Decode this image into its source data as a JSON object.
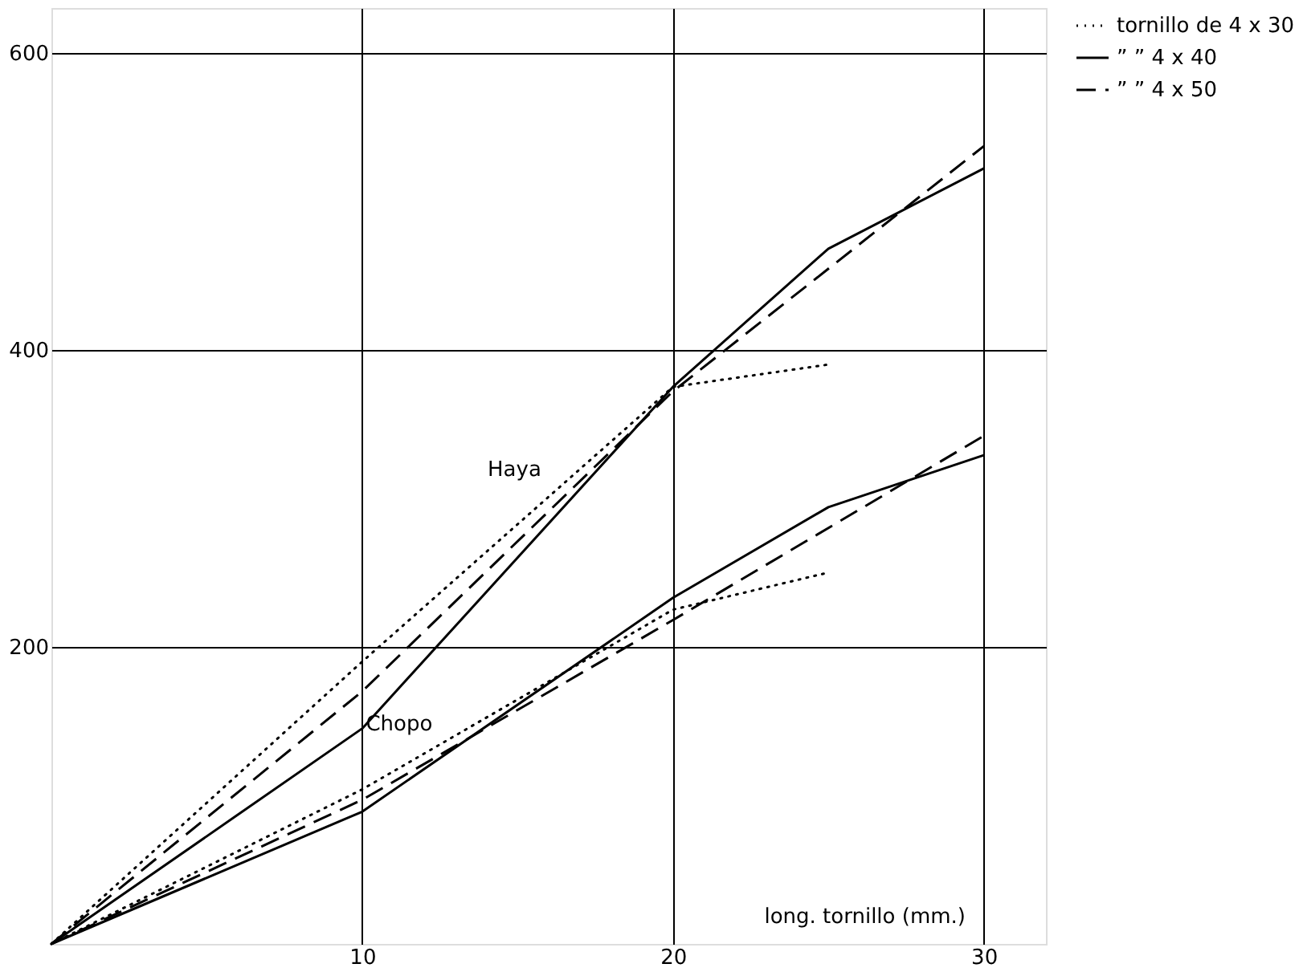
{
  "chart_data": {
    "type": "line",
    "xlabel": "long. tornillo (mm.)",
    "xlim": [
      0,
      32
    ],
    "ylim": [
      0,
      630
    ],
    "xticks": [
      10,
      20,
      30
    ],
    "yticks": [
      200,
      400,
      600
    ],
    "grid": true,
    "legend": "right",
    "marker": "none",
    "annotations": [
      {
        "text": "Haya",
        "x": 16.9,
        "y": 304
      },
      {
        "text": "Chopo",
        "x": 13.4,
        "y": 133
      }
    ],
    "series": [
      {
        "name": "tornillo de 4 x 30",
        "color": "#000000",
        "line_style": "dotted",
        "x": [
          0,
          10,
          20,
          25
        ],
        "values": [
          0,
          190,
          375,
          390
        ]
      },
      {
        "name": "”   ” 4 x 40",
        "color": "#000000",
        "line_style": "solid",
        "x": [
          0,
          10,
          20,
          25,
          30
        ],
        "values": [
          0,
          145,
          375,
          468,
          522
        ]
      },
      {
        "name": "”   ” 4 x 50",
        "color": "#000000",
        "line_style": "dashed",
        "x": [
          0,
          10,
          20,
          30
        ],
        "values": [
          0,
          170,
          372,
          537
        ]
      },
      {
        "color": "#000000",
        "line_style": "dotted",
        "x": [
          0,
          10,
          20,
          25
        ],
        "values": [
          0,
          104,
          225,
          250
        ]
      },
      {
        "color": "#000000",
        "line_style": "solid",
        "x": [
          0,
          10,
          20,
          25,
          30
        ],
        "values": [
          0,
          89,
          233,
          294,
          329
        ]
      },
      {
        "color": "#000000",
        "line_style": "dashed",
        "x": [
          0,
          10,
          20,
          30
        ],
        "values": [
          0,
          97,
          218,
          342
        ]
      }
    ]
  }
}
